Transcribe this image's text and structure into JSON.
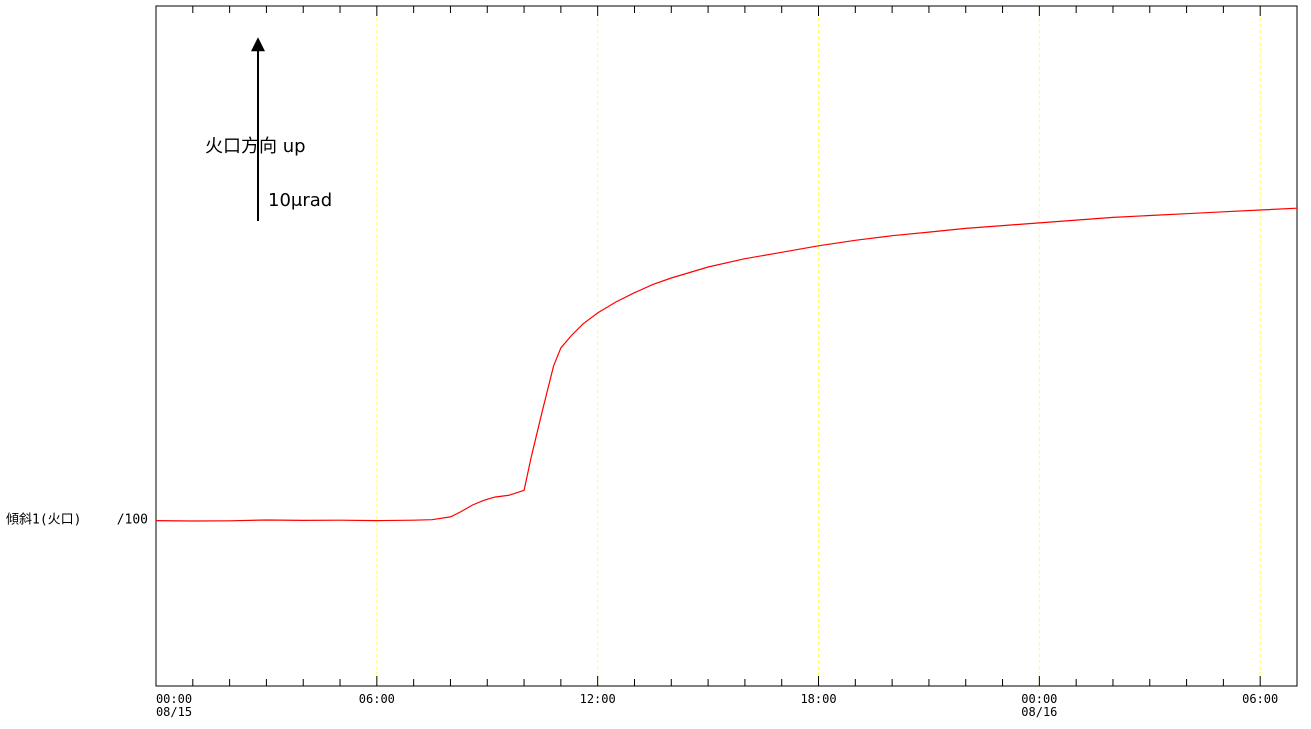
{
  "chart_data": {
    "type": "line",
    "series": [
      {
        "name": "傾斜1(火口)",
        "scale_label": "/100",
        "color": "#ff0000",
        "x": [
          0,
          1,
          2,
          3,
          4,
          5,
          6,
          7,
          7.5,
          8,
          8.3,
          8.6,
          8.9,
          9.2,
          9.6,
          10.0,
          10.2,
          10.5,
          10.8,
          11.0,
          11.3,
          11.6,
          12,
          12.5,
          13,
          13.5,
          14,
          15,
          16,
          17,
          18,
          19,
          20,
          21,
          22,
          23,
          24,
          25,
          26,
          27,
          28,
          29,
          30,
          31
        ],
        "y": [
          0.0,
          -0.02,
          -0.01,
          0.03,
          0.01,
          0.02,
          0.0,
          0.02,
          0.05,
          0.2,
          0.5,
          0.85,
          1.1,
          1.28,
          1.38,
          1.65,
          3.5,
          6.0,
          8.4,
          9.4,
          10.1,
          10.7,
          11.3,
          11.9,
          12.4,
          12.85,
          13.2,
          13.8,
          14.25,
          14.6,
          14.95,
          15.25,
          15.5,
          15.7,
          15.9,
          16.05,
          16.2,
          16.35,
          16.5,
          16.6,
          16.7,
          16.8,
          16.9,
          17.0
        ]
      }
    ],
    "xlim": [
      0,
      31
    ],
    "x_ticks": [
      {
        "hour": 0,
        "time": "00:00",
        "date": "08/15"
      },
      {
        "hour": 6,
        "time": "06:00",
        "date": ""
      },
      {
        "hour": 12,
        "time": "12:00",
        "date": ""
      },
      {
        "hour": 18,
        "time": "18:00",
        "date": ""
      },
      {
        "hour": 24,
        "time": "00:00",
        "date": "08/16"
      },
      {
        "hour": 30,
        "time": "06:00",
        "date": ""
      }
    ],
    "minor_tick_step_hours": 1,
    "ylim": [
      -9,
      28
    ],
    "grid": {
      "vertical": true,
      "color": "#ffff66",
      "style": "dashed"
    },
    "annotation": {
      "direction_label": "火口方向 up",
      "scale_label": "10μrad",
      "scale_value": 10
    }
  }
}
